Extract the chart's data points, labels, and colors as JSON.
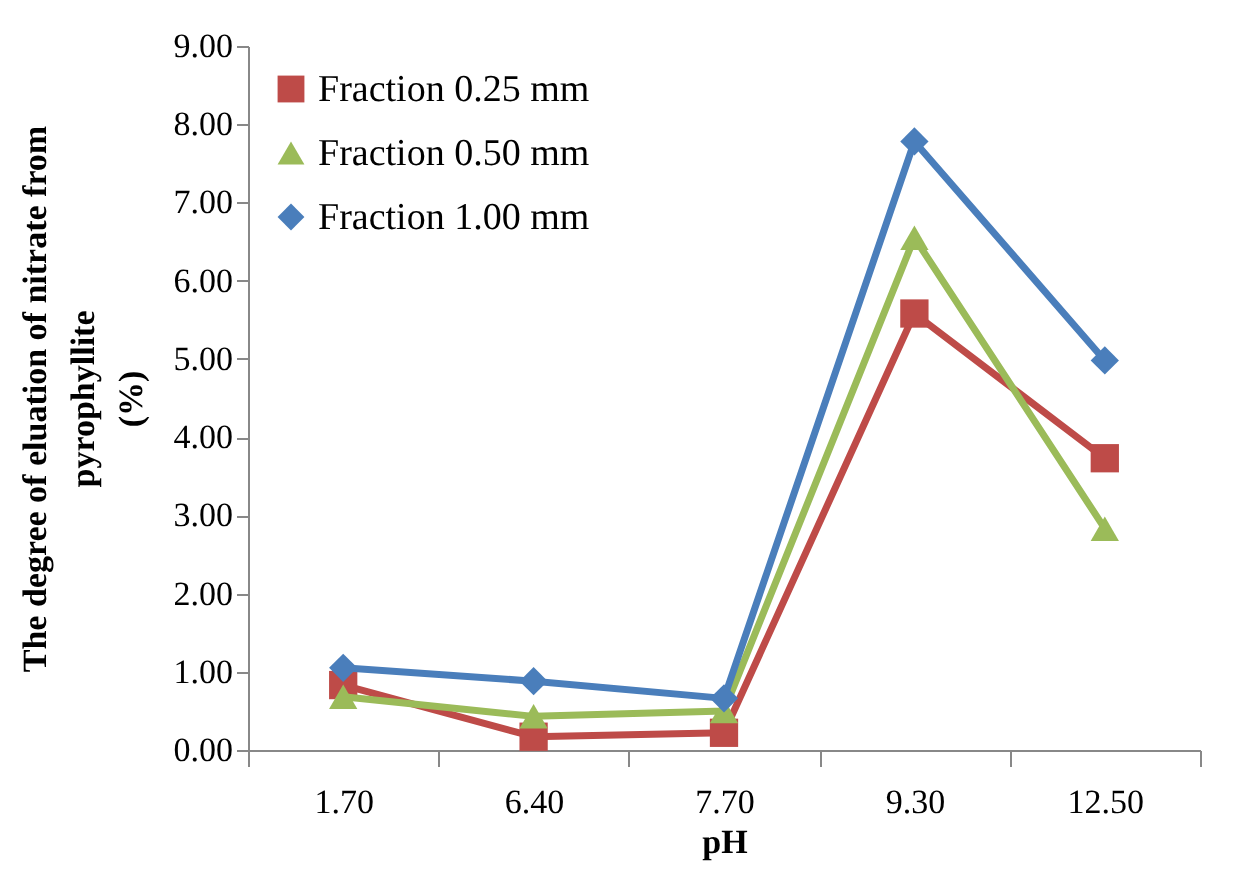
{
  "chart_data": {
    "type": "line",
    "xlabel": "pH",
    "ylabel": "The degree of eluation of nitrate from\npyrophyllite\n(%)",
    "categories": [
      "1.70",
      "6.40",
      "7.70",
      "9.30",
      "12.50"
    ],
    "series": [
      {
        "name": "Fraction 0.25 mm",
        "color": "#be4b48",
        "marker": "square",
        "values": [
          0.83,
          0.17,
          0.22,
          5.58,
          3.73
        ]
      },
      {
        "name": "Fraction 0.50 mm",
        "color": "#9bbb59",
        "marker": "triangle",
        "values": [
          0.68,
          0.43,
          0.5,
          6.55,
          2.83
        ]
      },
      {
        "name": "Fraction 1.00 mm",
        "color": "#4a7ebb",
        "marker": "diamond",
        "values": [
          1.05,
          0.88,
          0.66,
          7.78,
          4.98
        ]
      }
    ],
    "ylim": [
      0,
      9
    ],
    "yticks": [
      {
        "value": 0,
        "label": "0.00"
      },
      {
        "value": 1,
        "label": "1.00"
      },
      {
        "value": 2,
        "label": "2.00"
      },
      {
        "value": 3,
        "label": "3.00"
      },
      {
        "value": 4,
        "label": "4.00"
      },
      {
        "value": 5,
        "label": "5.00"
      },
      {
        "value": 6,
        "label": "6.00"
      },
      {
        "value": 7,
        "label": "7.00"
      },
      {
        "value": 8,
        "label": "8.00"
      },
      {
        "value": 9,
        "label": "9.00"
      }
    ],
    "grid": false,
    "legend": "top left"
  }
}
